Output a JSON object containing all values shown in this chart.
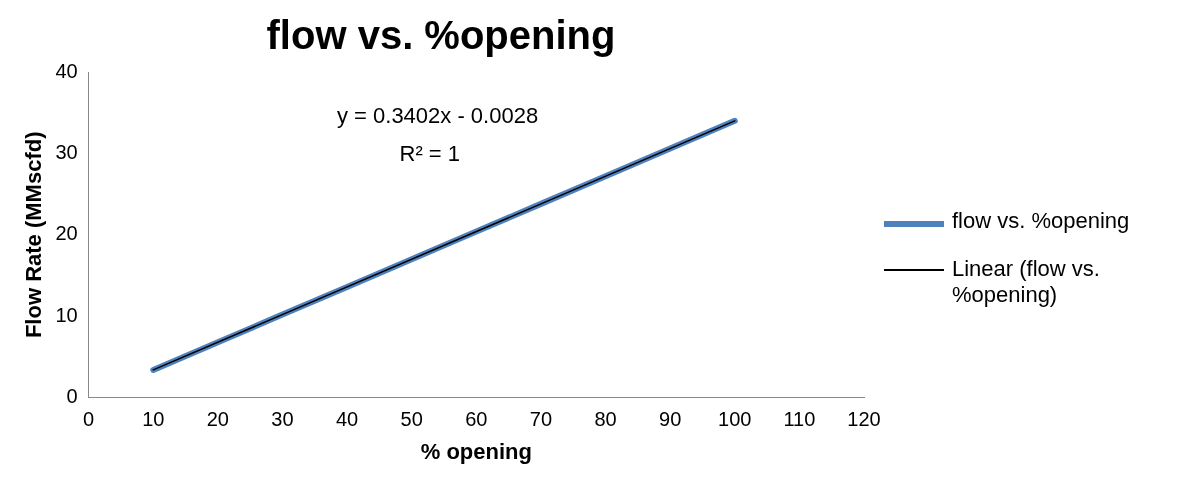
{
  "chart_data": {
    "type": "line",
    "title": "flow vs. %opening",
    "xlabel": "% opening",
    "ylabel": "Flow Rate (MMscfd)",
    "x": [
      10,
      20,
      30,
      40,
      50,
      60,
      70,
      80,
      90,
      100
    ],
    "series": [
      {
        "name": "flow vs. %opening",
        "color": "#4f81bd",
        "values": [
          3.4,
          6.8,
          10.2,
          13.6,
          17.0,
          20.4,
          23.8,
          27.2,
          30.6,
          34.0
        ]
      },
      {
        "name": "Linear (flow vs. %opening)",
        "type": "line",
        "color": "#000000",
        "x": [
          10,
          100
        ],
        "values": [
          3.4,
          34.0
        ]
      }
    ],
    "xlim": [
      0,
      120
    ],
    "xticks": [
      0,
      10,
      20,
      30,
      40,
      50,
      60,
      70,
      80,
      90,
      100,
      110,
      120
    ],
    "ylim": [
      0,
      40
    ],
    "yticks": [
      0,
      10,
      20,
      30,
      40
    ],
    "annotations": [
      "y = 0.3402x - 0.0028",
      "R² = 1"
    ],
    "legend": "right",
    "grid": false,
    "marker": "none",
    "line_style": "solid"
  }
}
